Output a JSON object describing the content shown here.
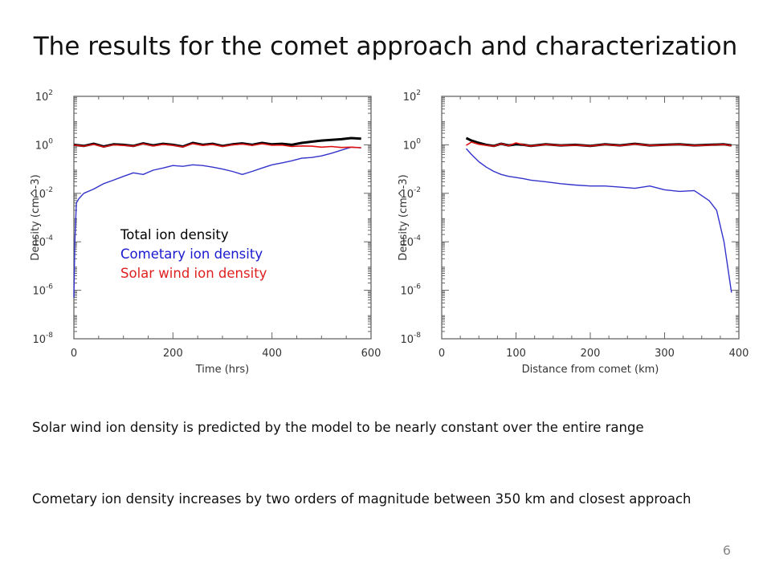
{
  "slide": {
    "title": "The results for the comet approach and characterization",
    "legend": {
      "total": "Total ion density",
      "cometary": "Cometary ion density",
      "solar": "Solar wind ion density"
    },
    "caption_1": "Solar wind ion density is predicted by the model to be nearly constant over the entire range",
    "caption_2": "Cometary ion density increases by two orders of magnitude between 350 km and closest approach",
    "page_number": "6"
  },
  "colors": {
    "total": "#000000",
    "cometary": "#3333cc",
    "solar": "#dd1111",
    "legend_cometary": "#1a1ad0",
    "legend_solar": "#e02020"
  },
  "chart_data": [
    {
      "type": "line",
      "xlabel": "Time (hrs)",
      "ylabel": "Density (cm^-3)",
      "xlim": [
        0,
        600
      ],
      "ylim": [
        1e-08,
        100
      ],
      "yscale": "log",
      "xticks": [
        "0",
        "200",
        "400",
        "600"
      ],
      "yticks": [
        {
          "base": "10",
          "exp": "2"
        },
        {
          "base": "10",
          "exp": "0"
        },
        {
          "base": "10",
          "exp": "-2"
        },
        {
          "base": "10",
          "exp": "-4"
        },
        {
          "base": "10",
          "exp": "-6"
        },
        {
          "base": "10",
          "exp": "-8"
        }
      ],
      "series": [
        {
          "name": "Total ion density",
          "x": [
            0,
            20,
            40,
            60,
            80,
            100,
            120,
            140,
            160,
            180,
            200,
            220,
            240,
            260,
            280,
            300,
            320,
            340,
            360,
            380,
            400,
            420,
            440,
            460,
            480,
            500,
            520,
            540,
            560,
            580
          ],
          "y": [
            1.0,
            0.9,
            1.1,
            0.85,
            1.05,
            1.0,
            0.9,
            1.15,
            0.95,
            1.1,
            1.0,
            0.85,
            1.2,
            1.0,
            1.1,
            0.9,
            1.05,
            1.15,
            1.0,
            1.2,
            1.05,
            1.1,
            1.0,
            1.2,
            1.35,
            1.5,
            1.6,
            1.7,
            1.9,
            1.8
          ]
        },
        {
          "name": "Cometary ion density",
          "x": [
            0,
            2,
            5,
            10,
            20,
            40,
            60,
            80,
            100,
            120,
            140,
            160,
            180,
            200,
            220,
            240,
            260,
            280,
            300,
            320,
            340,
            360,
            380,
            400,
            420,
            440,
            460,
            480,
            500,
            520,
            540,
            560,
            580
          ],
          "y": [
            5e-07,
            0.0001,
            0.004,
            0.006,
            0.01,
            0.015,
            0.025,
            0.035,
            0.05,
            0.07,
            0.06,
            0.09,
            0.11,
            0.14,
            0.13,
            0.15,
            0.14,
            0.12,
            0.1,
            0.08,
            0.06,
            0.08,
            0.11,
            0.15,
            0.18,
            0.22,
            0.28,
            0.3,
            0.35,
            0.45,
            0.6,
            0.8,
            0.75
          ]
        },
        {
          "name": "Solar wind ion density",
          "x": [
            0,
            20,
            40,
            60,
            80,
            100,
            120,
            140,
            160,
            180,
            200,
            220,
            240,
            260,
            280,
            300,
            320,
            340,
            360,
            380,
            400,
            420,
            440,
            460,
            480,
            500,
            520,
            540,
            560,
            580
          ],
          "y": [
            0.98,
            0.88,
            1.05,
            0.82,
            1.0,
            0.95,
            0.88,
            1.1,
            0.9,
            1.05,
            0.95,
            0.82,
            1.12,
            0.95,
            1.05,
            0.86,
            1.0,
            1.08,
            0.95,
            1.1,
            0.96,
            0.98,
            0.85,
            0.9,
            0.88,
            0.8,
            0.85,
            0.78,
            0.8,
            0.76
          ]
        }
      ]
    },
    {
      "type": "line",
      "xlabel": "Distance from comet (km)",
      "ylabel": "Density (cm^-3)",
      "xlim": [
        0,
        400
      ],
      "ylim": [
        1e-08,
        100
      ],
      "yscale": "log",
      "xticks": [
        "0",
        "100",
        "200",
        "300",
        "400"
      ],
      "yticks": [
        {
          "base": "10",
          "exp": "2"
        },
        {
          "base": "10",
          "exp": "0"
        },
        {
          "base": "10",
          "exp": "-2"
        },
        {
          "base": "10",
          "exp": "-4"
        },
        {
          "base": "10",
          "exp": "-6"
        },
        {
          "base": "10",
          "exp": "-8"
        }
      ],
      "series": [
        {
          "name": "Total ion density",
          "x": [
            33,
            40,
            50,
            60,
            70,
            80,
            90,
            100,
            110,
            120,
            140,
            160,
            180,
            200,
            220,
            240,
            260,
            280,
            300,
            320,
            340,
            360,
            380,
            390
          ],
          "y": [
            1.9,
            1.5,
            1.2,
            1.0,
            0.9,
            1.1,
            0.95,
            1.05,
            1.0,
            0.9,
            1.05,
            0.95,
            1.0,
            0.9,
            1.05,
            0.95,
            1.1,
            0.95,
            1.0,
            1.05,
            0.95,
            1.0,
            1.05,
            0.95
          ]
        },
        {
          "name": "Cometary ion density",
          "x": [
            33,
            40,
            50,
            60,
            70,
            80,
            90,
            100,
            110,
            120,
            140,
            160,
            180,
            200,
            220,
            240,
            260,
            280,
            300,
            320,
            340,
            350,
            360,
            370,
            380,
            390
          ],
          "y": [
            0.7,
            0.4,
            0.2,
            0.12,
            0.08,
            0.06,
            0.05,
            0.045,
            0.04,
            0.035,
            0.03,
            0.025,
            0.022,
            0.02,
            0.02,
            0.018,
            0.016,
            0.02,
            0.014,
            0.012,
            0.013,
            0.008,
            0.005,
            0.002,
            0.0001,
            8e-07
          ]
        },
        {
          "name": "Solar wind ion density",
          "x": [
            33,
            40,
            50,
            60,
            70,
            80,
            90,
            100,
            110,
            120,
            140,
            160,
            180,
            200,
            220,
            240,
            260,
            280,
            300,
            320,
            340,
            360,
            380,
            390
          ],
          "y": [
            0.95,
            1.3,
            1.05,
            0.95,
            0.88,
            1.1,
            0.92,
            1.2,
            1.0,
            0.9,
            1.02,
            0.94,
            0.98,
            0.9,
            1.03,
            0.93,
            1.08,
            0.94,
            0.98,
            1.03,
            0.93,
            0.98,
            1.02,
            0.93
          ]
        }
      ]
    }
  ]
}
